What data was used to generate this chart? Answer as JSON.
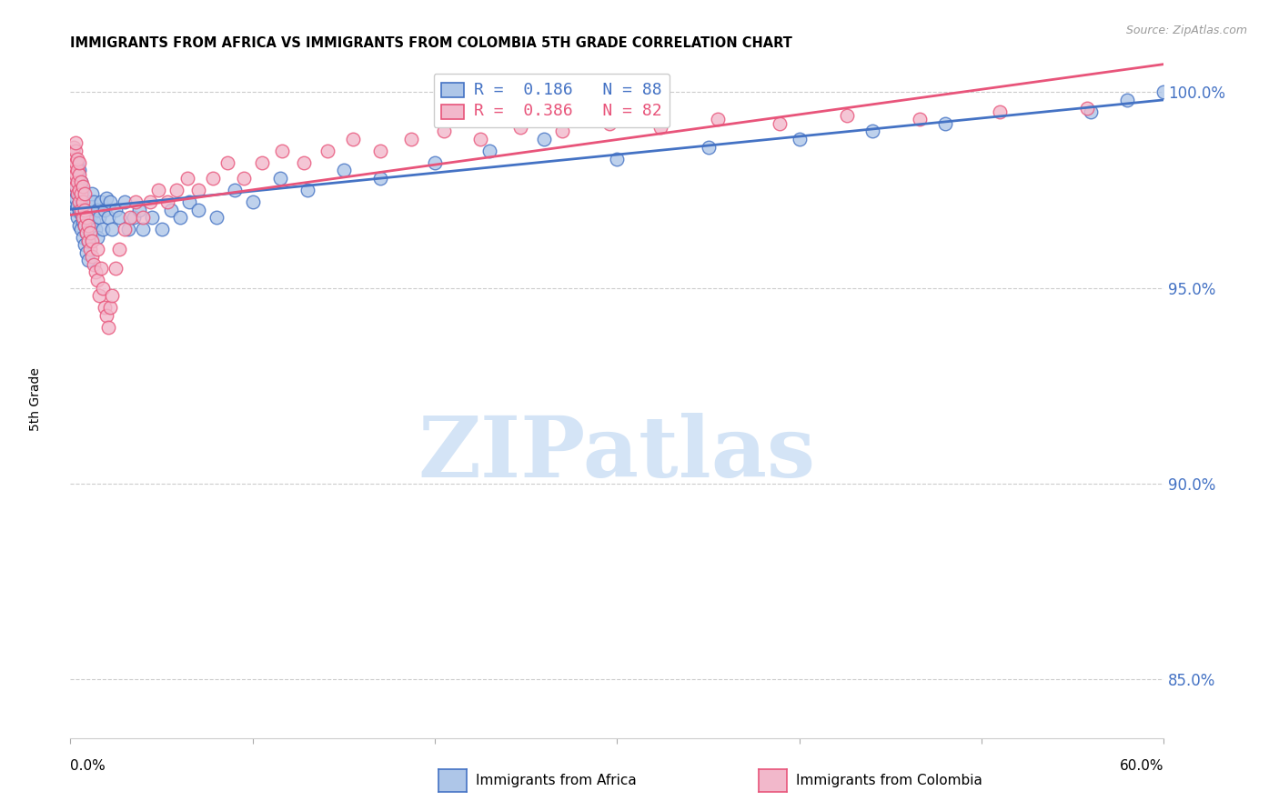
{
  "title": "IMMIGRANTS FROM AFRICA VS IMMIGRANTS FROM COLOMBIA 5TH GRADE CORRELATION CHART",
  "source_text": "Source: ZipAtlas.com",
  "ylabel": "5th Grade",
  "xlim": [
    0.0,
    0.6
  ],
  "ylim": [
    0.835,
    1.008
  ],
  "ytick_labels": [
    "85.0%",
    "90.0%",
    "95.0%",
    "100.0%"
  ],
  "ytick_values": [
    0.85,
    0.9,
    0.95,
    1.0
  ],
  "right_axis_color": "#4472c4",
  "legend_entries": [
    {
      "label": "R =  0.186   N = 88",
      "color": "#4472c4"
    },
    {
      "label": "R =  0.386   N = 82",
      "color": "#e8547a"
    }
  ],
  "africa_color": "#aec6e8",
  "africa_edge_color": "#4472c4",
  "colombia_color": "#f2b8cb",
  "colombia_edge_color": "#e8547a",
  "trendline_africa_color": "#4472c4",
  "trendline_colombia_color": "#e8547a",
  "watermark_text": "ZIPatlas",
  "watermark_color": "#cde0f5",
  "bottom_legend_africa": "Immigrants from Africa",
  "bottom_legend_colombia": "Immigrants from Colombia",
  "africa_x": [
    0.001,
    0.001,
    0.001,
    0.002,
    0.002,
    0.002,
    0.002,
    0.002,
    0.003,
    0.003,
    0.003,
    0.003,
    0.003,
    0.004,
    0.004,
    0.004,
    0.004,
    0.004,
    0.004,
    0.005,
    0.005,
    0.005,
    0.005,
    0.005,
    0.006,
    0.006,
    0.006,
    0.006,
    0.007,
    0.007,
    0.007,
    0.007,
    0.008,
    0.008,
    0.008,
    0.009,
    0.009,
    0.01,
    0.01,
    0.01,
    0.011,
    0.011,
    0.012,
    0.012,
    0.013,
    0.013,
    0.014,
    0.015,
    0.015,
    0.016,
    0.017,
    0.018,
    0.019,
    0.02,
    0.021,
    0.022,
    0.023,
    0.025,
    0.027,
    0.03,
    0.032,
    0.035,
    0.038,
    0.04,
    0.045,
    0.05,
    0.055,
    0.06,
    0.065,
    0.07,
    0.08,
    0.09,
    0.1,
    0.115,
    0.13,
    0.15,
    0.17,
    0.2,
    0.23,
    0.26,
    0.3,
    0.35,
    0.4,
    0.44,
    0.48,
    0.56,
    0.58,
    0.6
  ],
  "africa_y": [
    0.975,
    0.978,
    0.98,
    0.972,
    0.975,
    0.978,
    0.98,
    0.983,
    0.97,
    0.973,
    0.976,
    0.978,
    0.981,
    0.968,
    0.971,
    0.974,
    0.977,
    0.98,
    0.982,
    0.966,
    0.97,
    0.974,
    0.977,
    0.98,
    0.965,
    0.969,
    0.973,
    0.977,
    0.963,
    0.967,
    0.971,
    0.975,
    0.961,
    0.966,
    0.97,
    0.959,
    0.964,
    0.957,
    0.962,
    0.967,
    0.972,
    0.965,
    0.969,
    0.974,
    0.967,
    0.972,
    0.965,
    0.97,
    0.963,
    0.968,
    0.972,
    0.965,
    0.97,
    0.973,
    0.968,
    0.972,
    0.965,
    0.97,
    0.968,
    0.972,
    0.965,
    0.968,
    0.97,
    0.965,
    0.968,
    0.965,
    0.97,
    0.968,
    0.972,
    0.97,
    0.968,
    0.975,
    0.972,
    0.978,
    0.975,
    0.98,
    0.978,
    0.982,
    0.985,
    0.988,
    0.983,
    0.986,
    0.988,
    0.99,
    0.992,
    0.995,
    0.998,
    1.0
  ],
  "colombia_x": [
    0.001,
    0.001,
    0.002,
    0.002,
    0.002,
    0.002,
    0.003,
    0.003,
    0.003,
    0.003,
    0.003,
    0.004,
    0.004,
    0.004,
    0.004,
    0.005,
    0.005,
    0.005,
    0.005,
    0.006,
    0.006,
    0.006,
    0.007,
    0.007,
    0.007,
    0.008,
    0.008,
    0.008,
    0.009,
    0.009,
    0.01,
    0.01,
    0.011,
    0.011,
    0.012,
    0.012,
    0.013,
    0.014,
    0.015,
    0.015,
    0.016,
    0.017,
    0.018,
    0.019,
    0.02,
    0.021,
    0.022,
    0.023,
    0.025,
    0.027,
    0.03,
    0.033,
    0.036,
    0.04,
    0.044,
    0.048,
    0.053,
    0.058,
    0.064,
    0.07,
    0.078,
    0.086,
    0.095,
    0.105,
    0.116,
    0.128,
    0.141,
    0.155,
    0.17,
    0.187,
    0.205,
    0.225,
    0.247,
    0.27,
    0.296,
    0.324,
    0.355,
    0.389,
    0.426,
    0.466,
    0.51,
    0.558
  ],
  "colombia_y": [
    0.98,
    0.983,
    0.978,
    0.981,
    0.984,
    0.986,
    0.976,
    0.979,
    0.982,
    0.985,
    0.987,
    0.974,
    0.977,
    0.98,
    0.983,
    0.972,
    0.975,
    0.979,
    0.982,
    0.97,
    0.974,
    0.977,
    0.968,
    0.972,
    0.976,
    0.966,
    0.97,
    0.974,
    0.964,
    0.968,
    0.962,
    0.966,
    0.96,
    0.964,
    0.958,
    0.962,
    0.956,
    0.954,
    0.96,
    0.952,
    0.948,
    0.955,
    0.95,
    0.945,
    0.943,
    0.94,
    0.945,
    0.948,
    0.955,
    0.96,
    0.965,
    0.968,
    0.972,
    0.968,
    0.972,
    0.975,
    0.972,
    0.975,
    0.978,
    0.975,
    0.978,
    0.982,
    0.978,
    0.982,
    0.985,
    0.982,
    0.985,
    0.988,
    0.985,
    0.988,
    0.99,
    0.988,
    0.991,
    0.99,
    0.992,
    0.991,
    0.993,
    0.992,
    0.994,
    0.993,
    0.995,
    0.996
  ]
}
